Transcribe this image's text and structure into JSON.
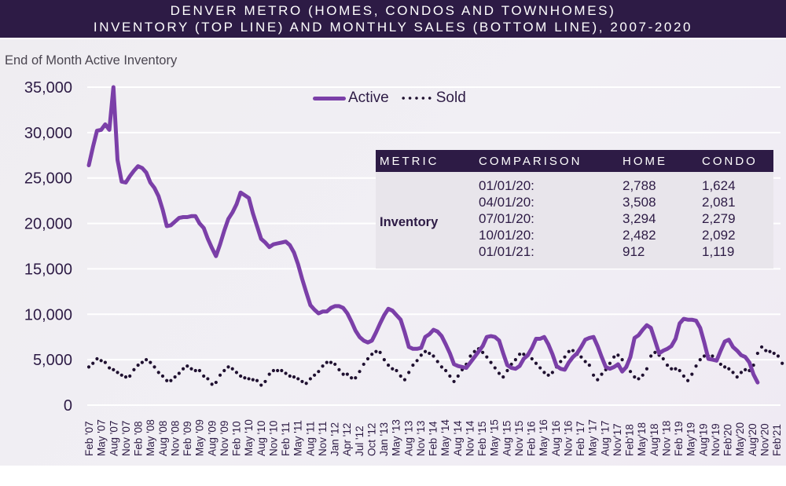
{
  "header": {
    "title_line1": "DENVER METRO (HOMES, CONDOS AND TOWNHOMES)",
    "title_line2": "INVENTORY (TOP LINE) AND MONTHLY SALES (BOTTOM LINE), 2007-2020"
  },
  "colors": {
    "header_bg": "#2d1b45",
    "active_line": "#7b3fa8",
    "sold_dots": "#1f1030",
    "table_body_bg": "#e8e5eb"
  },
  "table": {
    "headers": [
      "METRIC",
      "COMPARISON",
      "HOME",
      "CONDO"
    ],
    "metric": "Inventory",
    "rows": [
      {
        "comparison": "01/01/20:",
        "home": "2,788",
        "condo": "1,624"
      },
      {
        "comparison": "04/01/20:",
        "home": "3,508",
        "condo": "2,081"
      },
      {
        "comparison": "07/01/20:",
        "home": "3,294",
        "condo": "2,279"
      },
      {
        "comparison": "10/01/20:",
        "home": "2,482",
        "condo": "2,092"
      },
      {
        "comparison": "01/01/21:",
        "home": "912",
        "condo": "1,119"
      }
    ]
  },
  "chart_data": {
    "type": "line",
    "title": "DENVER METRO (HOMES, CONDOS AND TOWNHOMES) INVENTORY (TOP LINE) AND MONTHLY SALES (BOTTOM LINE), 2007-2020",
    "xlabel": "",
    "ylabel": "End of Month Active Inventory",
    "ylim": [
      0,
      35000
    ],
    "yticks": [
      0,
      5000,
      10000,
      15000,
      20000,
      25000,
      30000,
      35000
    ],
    "ytick_labels": [
      "0",
      "5,000",
      "10,000",
      "15,000",
      "20,000",
      "25,000",
      "30,000",
      "35,000"
    ],
    "grid": true,
    "legend": {
      "position": "top-center",
      "entries": [
        "Active",
        "Sold"
      ]
    },
    "x_start": "Feb 2007",
    "x_unit": "month",
    "xtick_labels": [
      "Feb '07",
      "May '07",
      "Aug '07",
      "Nov '07",
      "Feb '08",
      "May '08",
      "Aug '08",
      "Nov '08",
      "Feb '09",
      "May '09",
      "Aug '09",
      "Nov '09",
      "Feb '10",
      "May '10",
      "Aug '10",
      "Nov '10",
      "Feb '11",
      "May '11",
      "Aug '11",
      "Nov '11",
      "Jan '12",
      "Apr '12",
      "Jul '12",
      "Oct '12",
      "Jan '13",
      "May '13",
      "Aug '13",
      "Nov '13",
      "Feb '14",
      "May '14",
      "Aug '14",
      "Nov '14",
      "Feb '15",
      "May '15",
      "Aug '15",
      "Nov '15",
      "Feb '16",
      "May '16",
      "Aug '16",
      "Nov '16",
      "Feb '17",
      "May '17",
      "Aug '17",
      "Nov'17",
      "Feb'18",
      "May'18",
      "Aug'18",
      "Nov '18",
      "Feb '19",
      "May'19",
      "Aug'19",
      "Nov'19",
      "Feb'20",
      "May'20",
      "Aug'20",
      "Nov'20",
      "Feb'21"
    ],
    "series": [
      {
        "name": "Active",
        "style": "solid",
        "values": [
          26400,
          28400,
          30200,
          30300,
          30900,
          30300,
          35000,
          27000,
          24600,
          24500,
          25200,
          25800,
          26300,
          26100,
          25600,
          24500,
          23900,
          23000,
          21500,
          19700,
          19800,
          20200,
          20600,
          20700,
          20700,
          20800,
          20800,
          20000,
          19500,
          18300,
          17300,
          16400,
          17700,
          19200,
          20500,
          21200,
          22100,
          23400,
          23100,
          22800,
          21100,
          19700,
          18300,
          17900,
          17400,
          17700,
          17800,
          17900,
          18000,
          17600,
          16800,
          15500,
          13900,
          12400,
          11000,
          10500,
          10100,
          10300,
          10300,
          10700,
          10900,
          10900,
          10700,
          10100,
          9200,
          8200,
          7500,
          7100,
          6900,
          7100,
          8000,
          9000,
          9900,
          10600,
          10400,
          9900,
          9400,
          8000,
          6400,
          6200,
          6200,
          6300,
          7500,
          7800,
          8300,
          8100,
          7600,
          6700,
          5700,
          4500,
          4300,
          4200,
          4100,
          4700,
          5300,
          5900,
          6500,
          7500,
          7600,
          7500,
          7100,
          5700,
          4400,
          4100,
          4000,
          4300,
          5100,
          5500,
          6300,
          7300,
          7300,
          7500,
          6700,
          5600,
          4300,
          4000,
          3900,
          4700,
          5300,
          5700,
          6400,
          7200,
          7400,
          7500,
          6500,
          5300,
          4200,
          4000,
          4200,
          4500,
          3700,
          4200,
          5300,
          7400,
          7700,
          8300,
          8800,
          8500,
          7100,
          5700,
          6000,
          6200,
          6500,
          7300,
          9000,
          9500,
          9400,
          9400,
          9300,
          8500,
          6900,
          5100,
          5000,
          4900,
          6000,
          7000,
          7200,
          6400,
          6000,
          5500,
          5300,
          4700,
          3400,
          2500
        ]
      },
      {
        "name": "Sold",
        "style": "dotted",
        "values": [
          4200,
          4600,
          5100,
          4900,
          4700,
          4100,
          3900,
          3600,
          3300,
          3100,
          3200,
          3900,
          4400,
          4700,
          5000,
          4700,
          4200,
          3600,
          3200,
          2700,
          2700,
          3100,
          3500,
          4000,
          4300,
          4000,
          3800,
          3800,
          3200,
          2900,
          2300,
          2500,
          3300,
          3800,
          4200,
          4000,
          3600,
          3200,
          3000,
          2900,
          2800,
          2700,
          2200,
          2600,
          3400,
          3800,
          3800,
          3800,
          3500,
          3200,
          3100,
          2900,
          2600,
          2400,
          2900,
          3300,
          3700,
          4300,
          4700,
          4700,
          4500,
          3900,
          3400,
          3400,
          3000,
          3000,
          3700,
          4500,
          5100,
          5600,
          5900,
          5800,
          5000,
          4400,
          4000,
          3800,
          3200,
          2800,
          3600,
          4400,
          4900,
          5500,
          5900,
          5700,
          5400,
          4800,
          4200,
          3800,
          3200,
          2600,
          3200,
          3900,
          4500,
          5400,
          5900,
          6200,
          5800,
          5300,
          4700,
          4100,
          3500,
          3100,
          3800,
          4500,
          5000,
          5600,
          5600,
          5600,
          5100,
          4600,
          4100,
          3600,
          3300,
          3600,
          4200,
          4800,
          5300,
          5900,
          6000,
          5600,
          5300,
          4800,
          4400,
          3300,
          2800,
          3400,
          3900,
          4600,
          5300,
          5500,
          5000,
          4300,
          3700,
          3100,
          2900,
          3300,
          4000,
          5400,
          5800,
          5500,
          5100,
          4400,
          4000,
          4000,
          3800,
          3200,
          2700,
          3400,
          4300,
          5000,
          5400,
          5400,
          5400,
          4900,
          4500,
          4200,
          4000,
          3600,
          3100,
          3600,
          3900,
          3800,
          4400,
          5700,
          6400,
          6000,
          5900,
          5700,
          5400,
          4600
        ]
      }
    ]
  }
}
